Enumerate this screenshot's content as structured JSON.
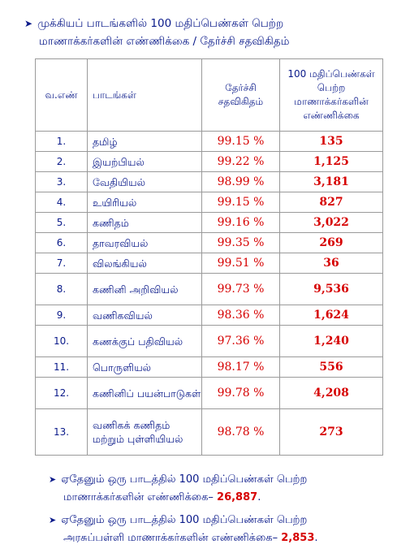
{
  "heading": {
    "line1": "முக்கியப் பாடங்களில் 100 மதிப்பெண்கள் பெற்ற",
    "line2": "மாணாக்கர்களின் எண்ணிக்கை / தேர்ச்சி சதவிகிதம்"
  },
  "table": {
    "headers": {
      "sno": "வ.எண்",
      "subject": "பாடங்கள்",
      "pass_pct": "தேர்ச்சி சதவிகிதம்",
      "centum": "100 மதிப்பெண்கள் பெற்ற மாணாக்கர்களின் எண்ணிக்கை"
    },
    "rows": [
      {
        "sno": "1.",
        "subject": "தமிழ்",
        "pct": "99.15 %",
        "count": "135"
      },
      {
        "sno": "2.",
        "subject": "இயற்பியல்",
        "pct": "99.22 %",
        "count": "1,125"
      },
      {
        "sno": "3.",
        "subject": "வேதியியல்",
        "pct": "98.99 %",
        "count": "3,181"
      },
      {
        "sno": "4.",
        "subject": "உயிரியல்",
        "pct": "99.15 %",
        "count": "827"
      },
      {
        "sno": "5.",
        "subject": "கணிதம்",
        "pct": "99.16 %",
        "count": "3,022"
      },
      {
        "sno": "6.",
        "subject": "தாவரவியல்",
        "pct": "99.35 %",
        "count": "269"
      },
      {
        "sno": "7.",
        "subject": "விலங்கியல்",
        "pct": "99.51 %",
        "count": "36"
      },
      {
        "sno": "8.",
        "subject": "கணினி அறிவியல்",
        "pct": "99.73 %",
        "count": "9,536"
      },
      {
        "sno": "9.",
        "subject": "வணிகவியல்",
        "pct": "98.36 %",
        "count": "1,624"
      },
      {
        "sno": "10.",
        "subject": "கணக்குப் பதிவியல்",
        "pct": "97.36 %",
        "count": "1,240"
      },
      {
        "sno": "11.",
        "subject": "பொருளியல்",
        "pct": "98.17 %",
        "count": "556"
      },
      {
        "sno": "12.",
        "subject": "கணினிப் பயன்பாடுகள்",
        "pct": "99.78 %",
        "count": "4,208"
      },
      {
        "sno": "13.",
        "subject": "வணிகக் கணிதம் மற்றும் புள்ளியியல்",
        "pct": "98.78 %",
        "count": "273"
      }
    ]
  },
  "footer": {
    "note1_line1": "ஏதேனும் ஒரு பாடத்தில் 100 மதிப்பெண்கள் பெற்ற",
    "note1_line2": "மாணாக்கர்களின் எண்ணிக்கை–",
    "note1_value": "26,887",
    "note2_line1": "ஏதேனும் ஒரு பாடத்தில் 100 மதிப்பெண்கள் பெற்ற",
    "note2_line2": "அரசுப்பள்ளி மாணாக்கர்களின் எண்ணிக்கை–",
    "note2_value": "2,853"
  }
}
